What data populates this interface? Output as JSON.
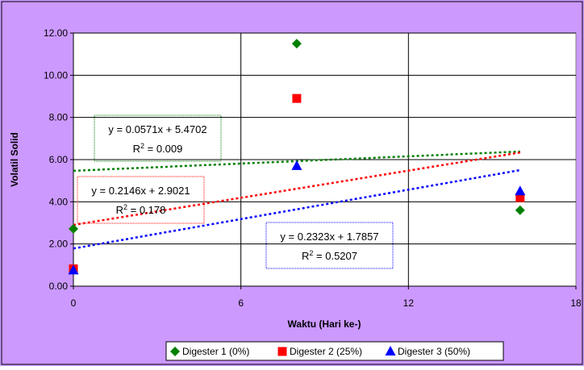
{
  "chart_data": {
    "type": "scatter",
    "title": "",
    "xlabel": "Waktu (Hari ke-)",
    "ylabel": "Volatil Solid",
    "xlim": [
      0,
      18
    ],
    "ylim": [
      0,
      12
    ],
    "x_ticks": [
      "0",
      "6",
      "12",
      "18"
    ],
    "y_ticks": [
      "0.00",
      "2.00",
      "4.00",
      "6.00",
      "8.00",
      "10.00",
      "12.00"
    ],
    "grid": "major gridlines on",
    "legend_position": "bottom",
    "colors": {
      "outer_background": "#cc99ff",
      "plot_background": "#ffffff",
      "digester1": "#008000",
      "digester2": "#ff0000",
      "digester3": "#0000ff"
    },
    "series": [
      {
        "name": "Digester 1 (0%)",
        "marker": "diamond",
        "x": [
          0,
          8,
          16
        ],
        "y": [
          2.72,
          11.5,
          3.6
        ],
        "trendline": {
          "slope": 0.0571,
          "intercept": 5.4702,
          "equation": "y = 0.0571x + 5.4702",
          "r2_prefix": "R",
          "r2_value": " = 0.009"
        }
      },
      {
        "name": "Digester 2 (25%)",
        "marker": "square",
        "x": [
          0,
          8,
          16
        ],
        "y": [
          0.82,
          8.9,
          4.2
        ],
        "trendline": {
          "slope": 0.2146,
          "intercept": 2.9021,
          "equation": "y = 0.2146x + 2.9021",
          "r2_prefix": "R",
          "r2_value": " = 0.178"
        }
      },
      {
        "name": "Digester 3 (50%)",
        "marker": "triangle",
        "x": [
          0,
          8,
          16
        ],
        "y": [
          0.75,
          5.7,
          4.5
        ],
        "trendline": {
          "slope": 0.2323,
          "intercept": 1.7857,
          "equation": "y = 0.2323x + 1.7857",
          "r2_prefix": "R",
          "r2_value": " = 0.5207"
        }
      }
    ]
  }
}
